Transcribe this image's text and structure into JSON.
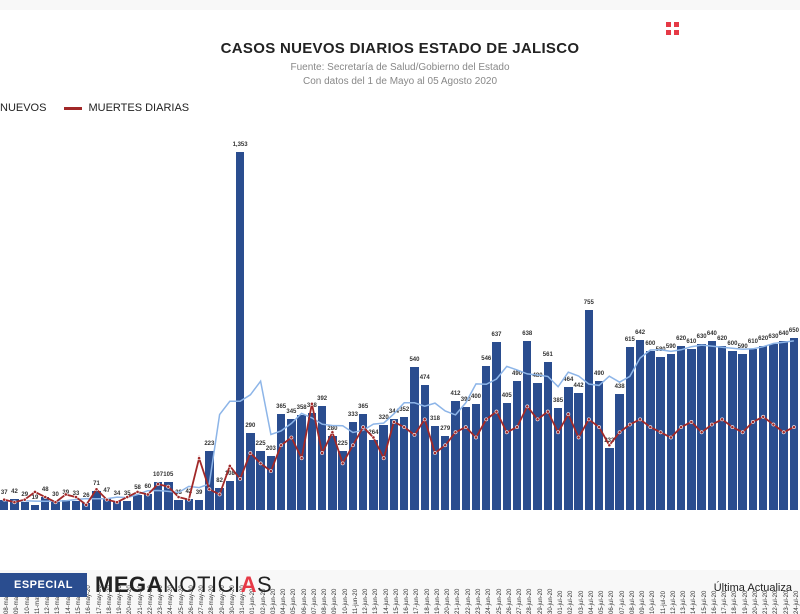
{
  "header": {
    "title": "CASOS NUEVOS DIARIOS ESTADO DE JALISCO",
    "source": "Fuente: Secretaría de Salud/Gobierno del Estado",
    "range": "Con datos del 1 de Mayo al 05 Agosto 2020"
  },
  "legend": {
    "series1": "NUEVOS",
    "series2": "MUERTES DIARIAS"
  },
  "chart": {
    "type": "bar+line",
    "ylim_bars": [
      0,
      1400
    ],
    "ylim_line": [
      0,
      50
    ],
    "bar_color": "#2a4d8f",
    "bar_trend_color": "#8db5e8",
    "line_color": "#a12828",
    "line_marker_color": "#ffffff",
    "grid_color": "#e8e8e8",
    "background": "#ffffff",
    "label_fontsize": 6,
    "axis_fontsize": 6,
    "dates": [
      "08-may-20",
      "09-may-20",
      "10-may-20",
      "11-may-20",
      "12-may-20",
      "13-may-20",
      "14-may-20",
      "15-may-20",
      "16-may-20",
      "17-may-20",
      "18-may-20",
      "19-may-20",
      "20-may-20",
      "21-may-20",
      "22-may-20",
      "23-may-20",
      "24-may-20",
      "25-may-20",
      "26-may-20",
      "27-may-20",
      "28-may-20",
      "29-may-20",
      "30-may-20",
      "31-may-20",
      "01-jun-20",
      "02-jun-20",
      "03-jun-20",
      "04-jun-20",
      "05-jun-20",
      "06-jun-20",
      "07-jun-20",
      "08-jun-20",
      "09-jun-20",
      "10-jun-20",
      "11-jun-20",
      "12-jun-20",
      "13-jun-20",
      "14-jun-20",
      "15-jun-20",
      "16-jun-20",
      "17-jun-20",
      "18-jun-20",
      "19-jun-20",
      "20-jun-20",
      "21-jun-20",
      "22-jun-20",
      "23-jun-20",
      "24-jun-20",
      "25-jun-20",
      "26-jun-20",
      "27-jun-20",
      "28-jun-20",
      "29-jun-20",
      "30-jun-20",
      "01-jul-20",
      "02-jul-20",
      "03-jul-20",
      "04-jul-20",
      "05-jul-20",
      "06-jul-20",
      "07-jul-20",
      "08-jul-20",
      "09-jul-20",
      "10-jul-20",
      "11-jul-20",
      "12-jul-20",
      "13-jul-20",
      "14-jul-20",
      "15-jul-20",
      "16-jul-20",
      "17-jul-20",
      "18-jul-20",
      "19-jul-20",
      "20-jul-20",
      "21-jul-20",
      "22-jul-20",
      "23-jul-20",
      "24-jul-20"
    ],
    "casos": [
      37,
      42,
      29,
      19,
      48,
      30,
      39,
      33,
      26,
      71,
      47,
      34,
      35,
      58,
      60,
      107,
      105,
      38,
      42,
      39,
      223,
      82,
      108,
      1353,
      290,
      225,
      203,
      365,
      345,
      358,
      368,
      392,
      280,
      225,
      333,
      365,
      264,
      320,
      344,
      352,
      540,
      474,
      318,
      279,
      412,
      390,
      400,
      546,
      637,
      405,
      490,
      638,
      480,
      561,
      385,
      464,
      442,
      755,
      490,
      233,
      438,
      615,
      642,
      600,
      580,
      590,
      620,
      610,
      630,
      640,
      620,
      600,
      590,
      610,
      620,
      630,
      640,
      650
    ],
    "muertes": [
      4,
      3,
      4,
      7,
      5,
      3,
      6,
      5,
      2,
      8,
      4,
      3,
      5,
      7,
      6,
      10,
      9,
      5,
      4,
      20,
      8,
      6,
      17,
      12,
      22,
      18,
      15,
      25,
      28,
      20,
      41,
      22,
      30,
      18,
      25,
      32,
      28,
      20,
      34,
      32,
      29,
      35,
      22,
      25,
      30,
      32,
      28,
      35,
      38,
      30,
      32,
      40,
      35,
      38,
      30,
      37,
      28,
      35,
      32,
      25,
      30,
      33,
      35,
      32,
      30,
      28,
      32,
      34,
      30,
      33,
      35,
      32,
      30,
      34,
      36,
      33,
      30,
      32
    ]
  },
  "footer": {
    "pill": "ESPECIAL",
    "brand_prefix": "MEGA",
    "brand_mid": "NOTICI",
    "brand_accent": "A",
    "brand_suffix": "S",
    "update": "Última Actualiza"
  }
}
